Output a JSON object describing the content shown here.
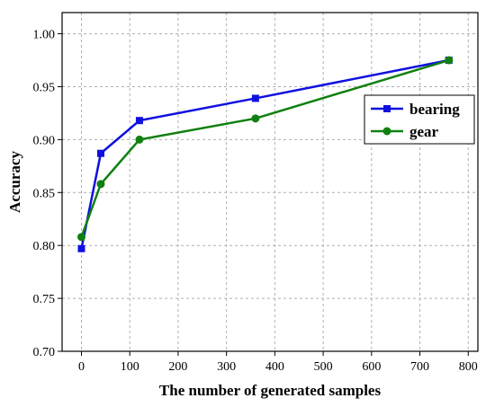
{
  "chart_data": {
    "type": "line",
    "title": "",
    "xlabel": "The number of generated samples",
    "ylabel": "Accuracy",
    "xlim": [
      -40,
      820
    ],
    "ylim": [
      0.7,
      1.02
    ],
    "xticks": [
      0,
      100,
      200,
      300,
      400,
      500,
      600,
      700,
      800
    ],
    "yticks": [
      0.7,
      0.75,
      0.8,
      0.85,
      0.9,
      0.95,
      1.0
    ],
    "xtick_labels": [
      "0",
      "100",
      "200",
      "300",
      "400",
      "500",
      "600",
      "700",
      "800"
    ],
    "ytick_labels": [
      "0.70",
      "0.75",
      "0.80",
      "0.85",
      "0.90",
      "0.95",
      "1.00"
    ],
    "grid": true,
    "legend_position": "right",
    "series": [
      {
        "name": "bearing",
        "color": "#1010e0",
        "marker": "square",
        "x": [
          0,
          40,
          120,
          360,
          760
        ],
        "y": [
          0.797,
          0.887,
          0.918,
          0.939,
          0.975
        ]
      },
      {
        "name": "gear",
        "color": "#108010",
        "marker": "circle",
        "x": [
          0,
          40,
          120,
          360,
          760
        ],
        "y": [
          0.808,
          0.858,
          0.9,
          0.92,
          0.975
        ]
      }
    ]
  }
}
